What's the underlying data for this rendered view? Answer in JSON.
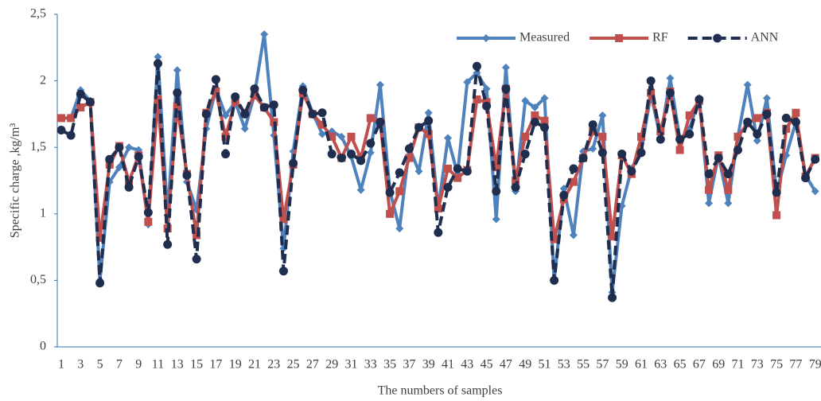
{
  "chart_data": {
    "type": "line",
    "x_label": "The numbers of samples",
    "y_label": "Specific charge ,kg/m³",
    "categories": [
      1,
      null,
      3,
      null,
      5,
      null,
      7,
      null,
      9,
      null,
      11,
      null,
      13,
      null,
      15,
      null,
      17,
      null,
      19,
      null,
      21,
      null,
      23,
      null,
      25,
      null,
      27,
      null,
      29,
      null,
      31,
      null,
      33,
      null,
      35,
      null,
      37,
      null,
      39,
      null,
      41,
      null,
      43,
      null,
      45,
      null,
      47,
      null,
      49,
      null,
      51,
      null,
      53,
      null,
      55,
      null,
      57,
      null,
      59,
      null,
      61,
      null,
      63,
      null,
      65,
      null,
      67,
      null,
      69,
      null,
      71,
      null,
      73,
      null,
      75,
      null,
      77,
      null,
      79
    ],
    "ylim": [
      0,
      2.5
    ],
    "yticks": [
      0,
      {
        "value": 0.5,
        "label": "0,5"
      },
      1,
      {
        "value": 1.5,
        "label": "1,5"
      },
      2,
      {
        "value": 2.5,
        "label": "2,5"
      }
    ],
    "legend_position": "top-right",
    "series": [
      {
        "name": "Measured",
        "color": "#4f81bd",
        "marker": "diamond",
        "line_style": "solid",
        "values": [
          1.72,
          1.72,
          1.93,
          1.85,
          0.5,
          1.24,
          1.35,
          1.5,
          1.48,
          0.92,
          2.18,
          0.99,
          2.08,
          1.24,
          1.03,
          1.64,
          1.94,
          1.74,
          1.84,
          1.64,
          1.9,
          2.35,
          1.59,
          0.74,
          1.47,
          1.96,
          1.76,
          1.6,
          1.62,
          1.58,
          1.43,
          1.18,
          1.46,
          1.97,
          1.17,
          0.89,
          1.5,
          1.32,
          1.76,
          1.04,
          1.57,
          1.3,
          1.99,
          2.06,
          1.94,
          0.96,
          2.1,
          1.17,
          1.85,
          1.8,
          1.87,
          0.5,
          1.19,
          0.84,
          1.47,
          1.49,
          1.74,
          0.41,
          1.06,
          1.34,
          1.47,
          1.9,
          1.57,
          2.02,
          1.56,
          1.64,
          1.87,
          1.08,
          1.44,
          1.08,
          1.58,
          1.97,
          1.55,
          1.87,
          1.16,
          1.44,
          1.69,
          1.29,
          1.17
        ]
      },
      {
        "name": "RF",
        "color": "#c0504d",
        "marker": "square",
        "line_style": "solid",
        "values": [
          1.72,
          1.72,
          1.8,
          1.84,
          0.82,
          1.37,
          1.51,
          1.24,
          1.44,
          0.94,
          1.86,
          0.89,
          1.81,
          1.3,
          0.84,
          1.76,
          1.92,
          1.58,
          1.85,
          1.76,
          1.89,
          1.8,
          1.69,
          0.96,
          1.37,
          1.91,
          1.75,
          1.67,
          1.58,
          1.42,
          1.58,
          1.42,
          1.72,
          1.69,
          1.0,
          1.17,
          1.42,
          1.65,
          1.6,
          1.04,
          1.34,
          1.27,
          1.33,
          1.86,
          1.84,
          1.35,
          1.94,
          1.25,
          1.58,
          1.74,
          1.7,
          0.81,
          1.11,
          1.24,
          1.42,
          1.62,
          1.58,
          0.83,
          1.44,
          1.3,
          1.58,
          1.91,
          1.62,
          1.92,
          1.48,
          1.74,
          1.85,
          1.18,
          1.44,
          1.18,
          1.58,
          1.68,
          1.72,
          1.76,
          0.99,
          1.64,
          1.76,
          1.28,
          1.42
        ]
      },
      {
        "name": "ANN",
        "color": "#1f2d4e",
        "marker": "circle",
        "line_style": "dashed",
        "values": [
          1.63,
          1.59,
          1.9,
          1.84,
          0.48,
          1.41,
          1.5,
          1.2,
          1.43,
          1.01,
          2.13,
          0.77,
          1.91,
          1.29,
          0.66,
          1.75,
          2.01,
          1.45,
          1.88,
          1.75,
          1.94,
          1.8,
          1.82,
          0.57,
          1.38,
          1.93,
          1.75,
          1.76,
          1.45,
          1.42,
          1.45,
          1.4,
          1.53,
          1.69,
          1.16,
          1.31,
          1.49,
          1.65,
          1.7,
          0.86,
          1.2,
          1.34,
          1.32,
          2.11,
          1.81,
          1.17,
          1.94,
          1.2,
          1.45,
          1.69,
          1.65,
          0.5,
          1.14,
          1.34,
          1.42,
          1.67,
          1.46,
          0.37,
          1.45,
          1.32,
          1.46,
          2.0,
          1.56,
          1.91,
          1.56,
          1.6,
          1.86,
          1.3,
          1.42,
          1.3,
          1.48,
          1.69,
          1.6,
          1.75,
          1.16,
          1.72,
          1.69,
          1.27,
          1.41
        ]
      }
    ]
  }
}
